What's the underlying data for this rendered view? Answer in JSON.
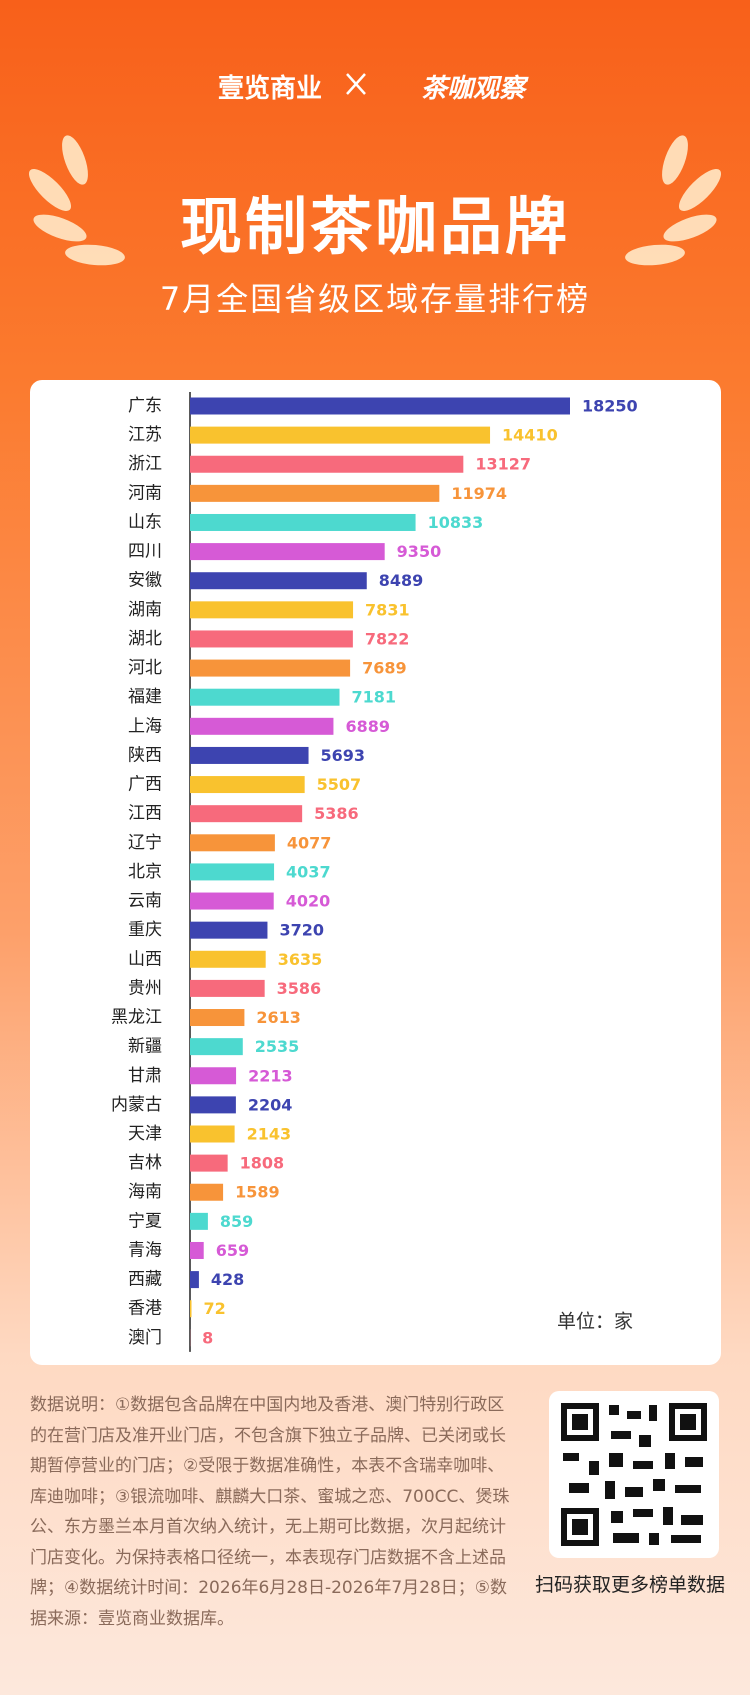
{
  "header": {
    "brand_left": "壹览商业",
    "brand_right": "茶咖观察",
    "title": "现制茶咖品牌",
    "subtitle": "7月全国省级区域存量排行榜"
  },
  "chart_data": {
    "type": "bar",
    "orientation": "horizontal",
    "categories": [
      "广东",
      "江苏",
      "浙江",
      "河南",
      "山东",
      "四川",
      "安徽",
      "湖南",
      "湖北",
      "河北",
      "福建",
      "上海",
      "陕西",
      "广西",
      "江西",
      "辽宁",
      "北京",
      "云南",
      "重庆",
      "山西",
      "贵州",
      "黑龙江",
      "新疆",
      "甘肃",
      "内蒙古",
      "天津",
      "吉林",
      "海南",
      "宁夏",
      "青海",
      "西藏",
      "香港",
      "澳门"
    ],
    "values": [
      18250,
      14410,
      13127,
      11974,
      10833,
      9350,
      8489,
      7831,
      7822,
      7689,
      7181,
      6889,
      5693,
      5507,
      5386,
      4077,
      4037,
      4020,
      3720,
      3635,
      3586,
      2613,
      2535,
      2213,
      2204,
      2143,
      1808,
      1589,
      859,
      659,
      428,
      72,
      8
    ],
    "colors": [
      "#3d44b0",
      "#f9c22e",
      "#f76a7c",
      "#f7943a",
      "#4dd9cf",
      "#d65ad6"
    ],
    "unit_label": "单位：家"
  },
  "notes": "数据说明：①数据包含品牌在中国内地及香港、澳门特别行政区的在营门店及准开业门店，不包含旗下独立子品牌、已关闭或长期暂停营业的门店；②受限于数据准确性，本表不含瑞幸咖啡、库迪咖啡；③银流咖啡、麒麟大口茶、蜜城之恋、700CC、煲珠公、东方墨兰本月首次纳入统计，无上期可比数据，次月起统计门店变化。为保持表格口径统一，本表现存门店数据不含上述品牌；④数据统计时间：2026年6月28日-2026年7月28日；⑤数据来源：壹览商业数据库。",
  "qr_caption": "扫码获取更多榜单数据"
}
